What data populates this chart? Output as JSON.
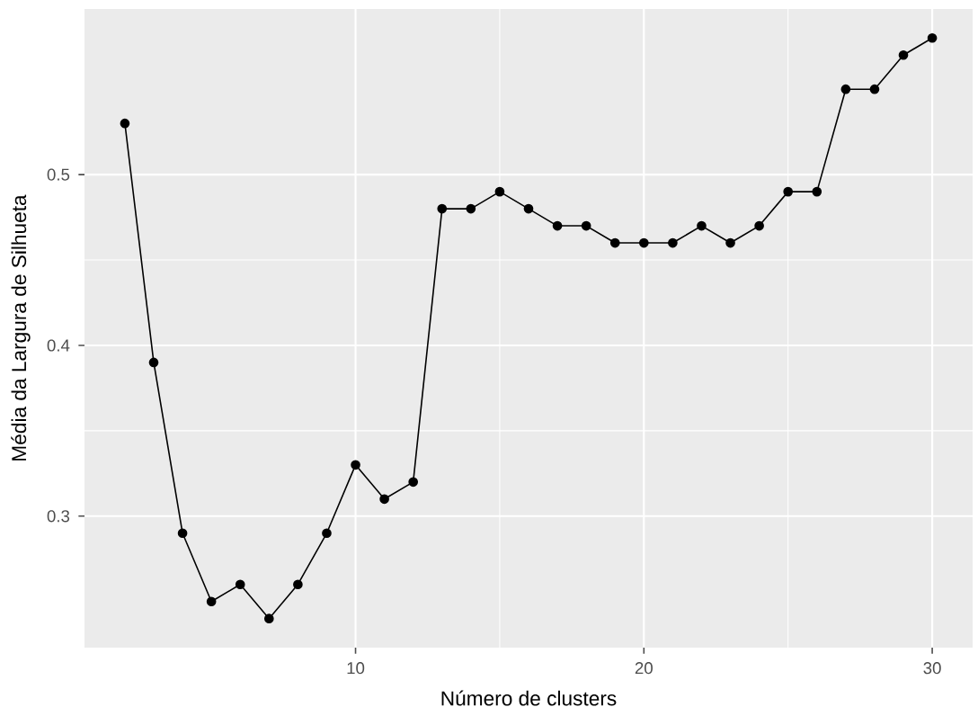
{
  "chart_data": {
    "type": "line",
    "xlabel": "Número de clusters",
    "ylabel": "Média da Largura de Silhueta",
    "x": [
      2,
      3,
      4,
      5,
      6,
      7,
      8,
      9,
      10,
      11,
      12,
      13,
      14,
      15,
      16,
      17,
      18,
      19,
      20,
      21,
      22,
      23,
      24,
      25,
      26,
      27,
      28,
      29,
      30
    ],
    "values": [
      0.53,
      0.39,
      0.29,
      0.25,
      0.26,
      0.24,
      0.26,
      0.29,
      0.33,
      0.31,
      0.32,
      0.48,
      0.48,
      0.49,
      0.48,
      0.47,
      0.47,
      0.46,
      0.46,
      0.46,
      0.47,
      0.46,
      0.47,
      0.49,
      0.49,
      0.55,
      0.55,
      0.57,
      0.58
    ],
    "color": "#000000",
    "marker": "circle",
    "line_style": "solid",
    "xlim": [
      0.6,
      31.4
    ],
    "ylim": [
      0.223,
      0.597
    ],
    "xticks": [
      10,
      20,
      30
    ],
    "yticks": [
      0.3,
      0.4,
      0.5
    ],
    "grid": true
  }
}
